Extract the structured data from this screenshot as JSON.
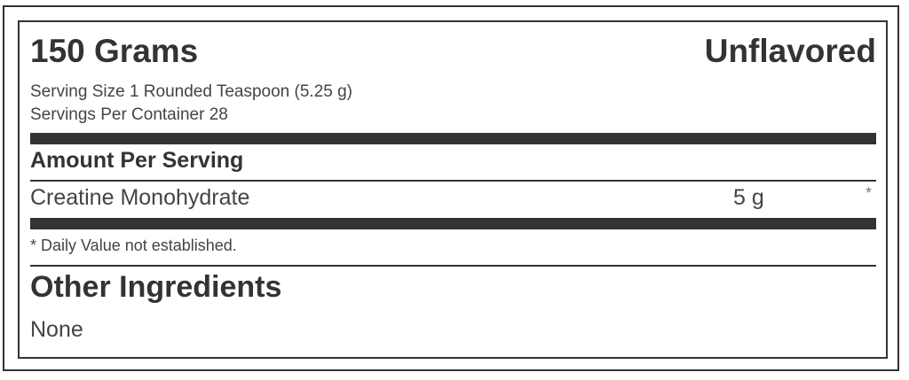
{
  "label": {
    "net_weight": "150 Grams",
    "flavor": "Unflavored",
    "serving_size": "Serving Size 1 Rounded Teaspoon (5.25 g)",
    "servings_per_container": "Servings Per Container 28",
    "amount_header": "Amount Per Serving",
    "ingredients": [
      {
        "name": "Creatine Monohydrate",
        "amount": "5 g",
        "daily_value": "*"
      }
    ],
    "footnote": "* Daily Value not established.",
    "other_ingredients_title": "Other Ingredients",
    "other_ingredients": "None"
  }
}
